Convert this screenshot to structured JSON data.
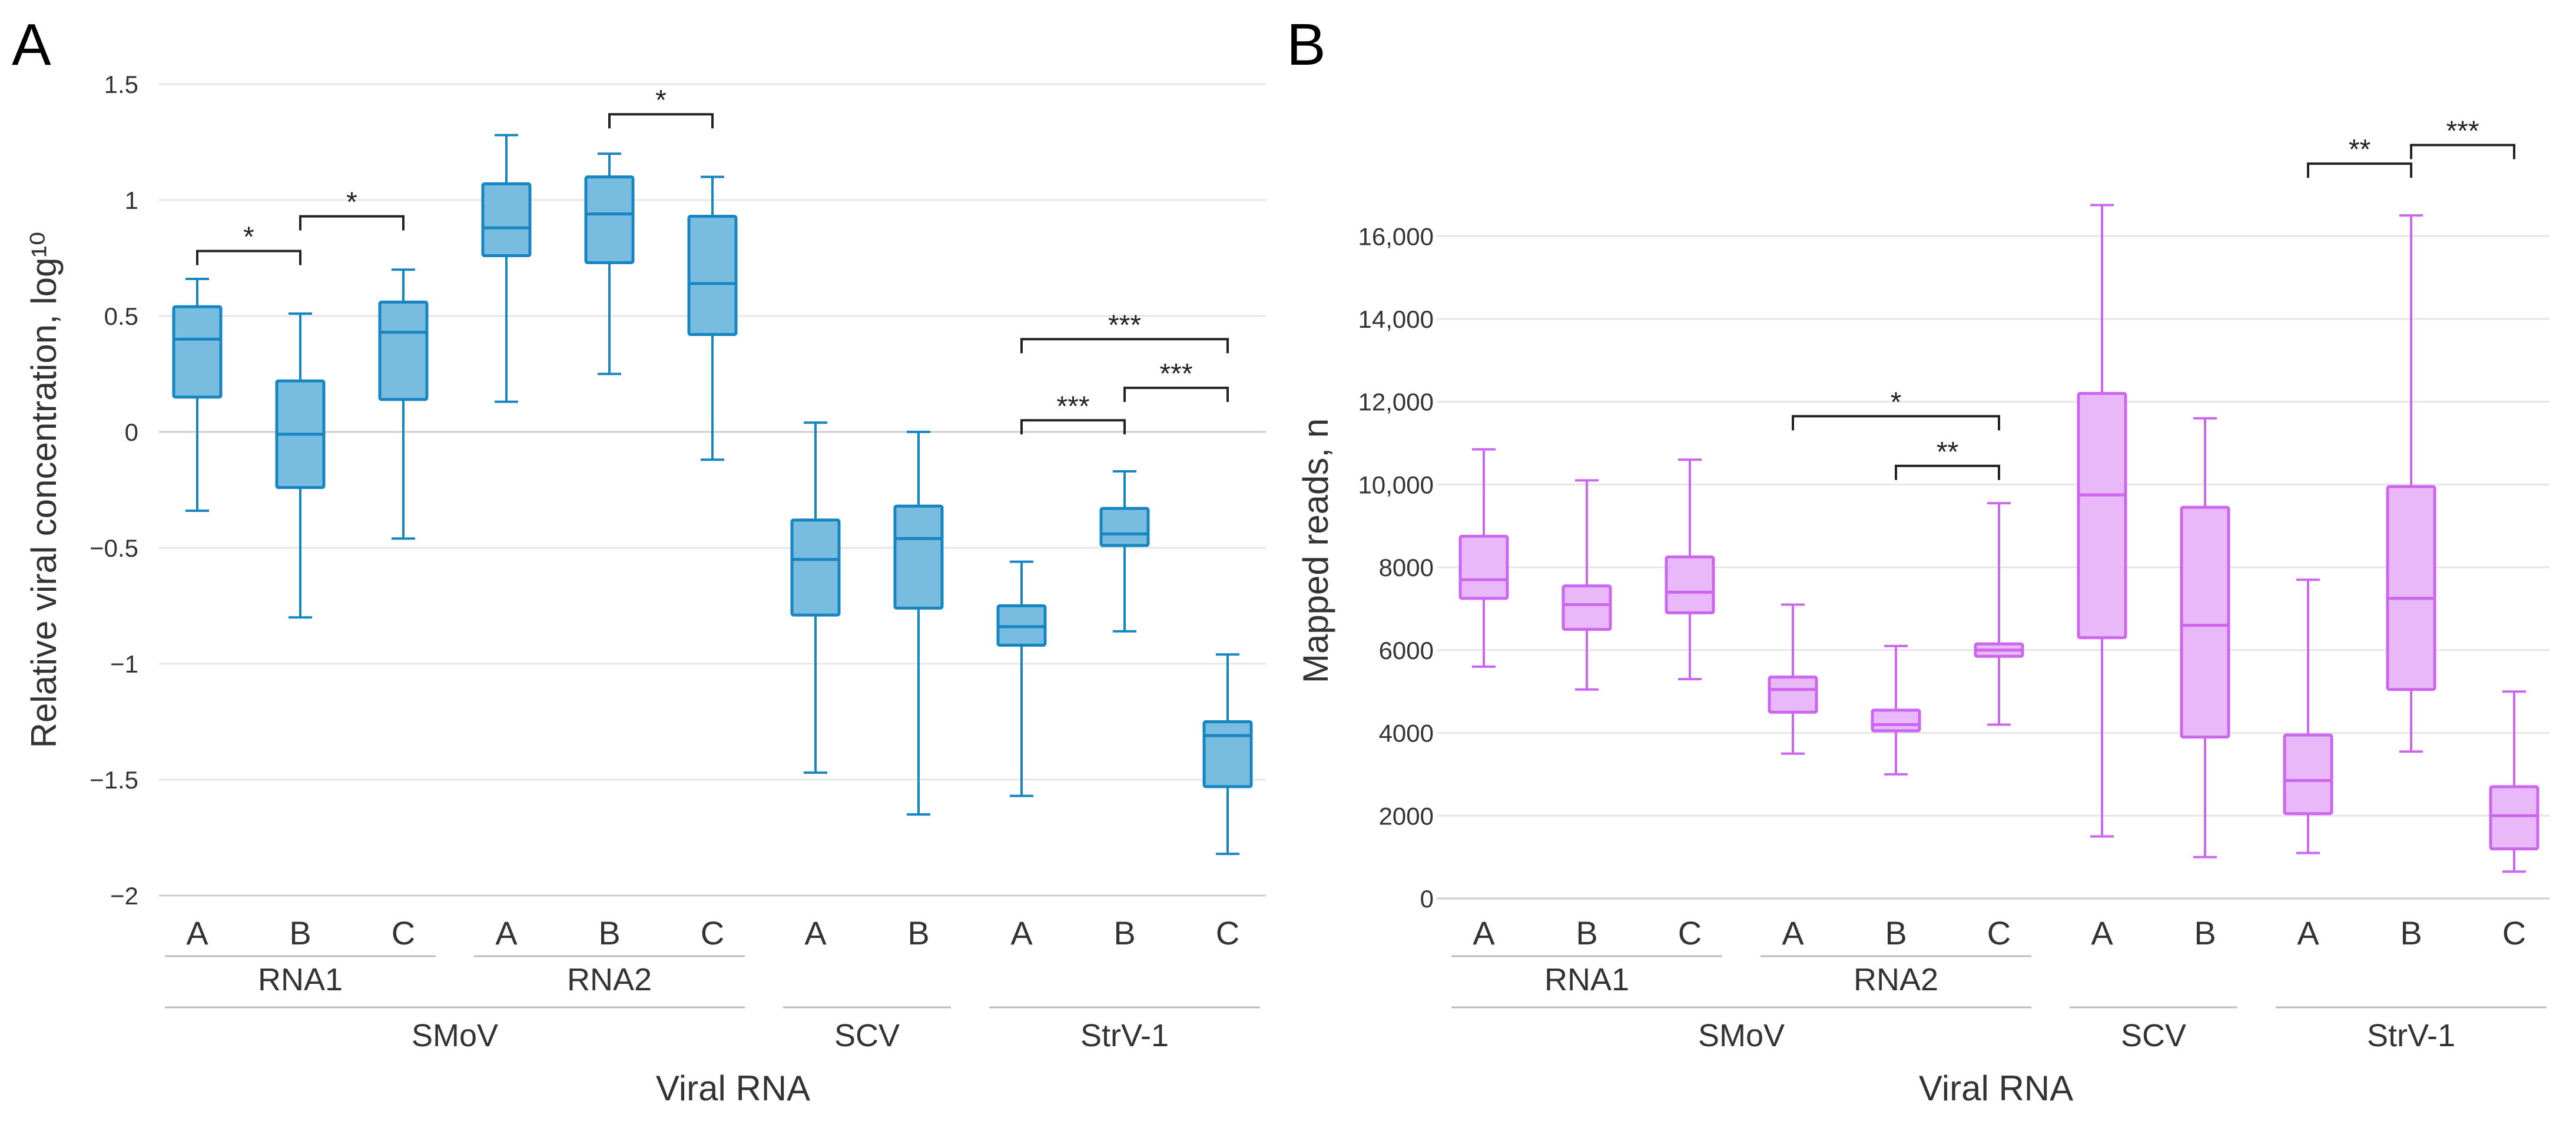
{
  "panels": [
    {
      "letter": "A",
      "ylabel": "Relative viral concentration, log¹⁰",
      "xlabel": "Viral RNA",
      "ylim": [
        -2,
        1.5
      ],
      "yticks": [
        {
          "value": 1.5,
          "label": "1.5"
        },
        {
          "value": 1,
          "label": "1"
        },
        {
          "value": 0.5,
          "label": "0.5"
        },
        {
          "value": 0,
          "label": "0"
        },
        {
          "value": -0.5,
          "label": "−0.5"
        },
        {
          "value": -1,
          "label": "−1"
        },
        {
          "value": -1.5,
          "label": "−1.5"
        },
        {
          "value": -2,
          "label": "−2"
        }
      ],
      "color": "#1785c2",
      "fill": "#78bde0",
      "zero_line": true,
      "groups_level1": [
        {
          "label": "RNA1",
          "from": 0,
          "to": 2
        },
        {
          "label": "RNA2",
          "from": 3,
          "to": 5
        }
      ],
      "groups_level2": [
        {
          "label": "SMoV",
          "from": 0,
          "to": 5
        },
        {
          "label": "SCV",
          "from": 6,
          "to": 7
        },
        {
          "label": "StrV-1",
          "from": 8,
          "to": 10
        }
      ],
      "boxes": [
        {
          "label": "A",
          "min": -0.34,
          "q1": 0.15,
          "median": 0.4,
          "q3": 0.54,
          "max": 0.66
        },
        {
          "label": "B",
          "min": -0.8,
          "q1": -0.24,
          "median": -0.01,
          "q3": 0.22,
          "max": 0.51
        },
        {
          "label": "C",
          "min": -0.46,
          "q1": 0.14,
          "median": 0.43,
          "q3": 0.56,
          "max": 0.7
        },
        {
          "label": "A",
          "min": 0.13,
          "q1": 0.76,
          "median": 0.88,
          "q3": 1.07,
          "max": 1.28
        },
        {
          "label": "B",
          "min": 0.25,
          "q1": 0.73,
          "median": 0.94,
          "q3": 1.1,
          "max": 1.2
        },
        {
          "label": "C",
          "min": -0.12,
          "q1": 0.42,
          "median": 0.64,
          "q3": 0.93,
          "max": 1.1
        },
        {
          "label": "A",
          "min": -1.47,
          "q1": -0.79,
          "median": -0.55,
          "q3": -0.38,
          "max": 0.04
        },
        {
          "label": "B",
          "min": -1.65,
          "q1": -0.76,
          "median": -0.46,
          "q3": -0.32,
          "max": 0.0
        },
        {
          "label": "A",
          "min": -1.57,
          "q1": -0.92,
          "median": -0.84,
          "q3": -0.75,
          "max": -0.56
        },
        {
          "label": "B",
          "min": -0.86,
          "q1": -0.49,
          "median": -0.44,
          "q3": -0.33,
          "max": -0.17
        },
        {
          "label": "C",
          "min": -1.82,
          "q1": -1.53,
          "median": -1.31,
          "q3": -1.25,
          "max": -0.96
        }
      ],
      "significance": [
        {
          "from": 0,
          "to": 1,
          "y": 0.78,
          "label": "*"
        },
        {
          "from": 1,
          "to": 2,
          "y": 0.93,
          "label": "*"
        },
        {
          "from": 4,
          "to": 5,
          "y": 1.37,
          "label": "*"
        },
        {
          "from": 8,
          "to": 10,
          "y": 0.4,
          "label": "***"
        },
        {
          "from": 9,
          "to": 10,
          "y": 0.19,
          "label": "***"
        },
        {
          "from": 8,
          "to": 9,
          "y": 0.05,
          "label": "***"
        }
      ]
    },
    {
      "letter": "B",
      "ylabel": "Mapped reads, n",
      "xlabel": "Viral RNA",
      "ylim": [
        0,
        16800
      ],
      "yticks": [
        {
          "value": 0,
          "label": "0"
        },
        {
          "value": 2000,
          "label": "2000"
        },
        {
          "value": 4000,
          "label": "4000"
        },
        {
          "value": 6000,
          "label": "6000"
        },
        {
          "value": 8000,
          "label": "8000"
        },
        {
          "value": 10000,
          "label": "10,000"
        },
        {
          "value": 12000,
          "label": "12,000"
        },
        {
          "value": 14000,
          "label": "14,000"
        },
        {
          "value": 16000,
          "label": "16,000"
        }
      ],
      "color": "#cc66ee",
      "fill": "#e8b8f8",
      "zero_line": false,
      "groups_level1": [
        {
          "label": "RNA1",
          "from": 0,
          "to": 2
        },
        {
          "label": "RNA2",
          "from": 3,
          "to": 5
        }
      ],
      "groups_level2": [
        {
          "label": "SMoV",
          "from": 0,
          "to": 5
        },
        {
          "label": "SCV",
          "from": 6,
          "to": 7
        },
        {
          "label": "StrV-1",
          "from": 8,
          "to": 10
        }
      ],
      "boxes": [
        {
          "label": "A",
          "min": 5600,
          "q1": 7250,
          "median": 7700,
          "q3": 8750,
          "max": 10850
        },
        {
          "label": "B",
          "min": 5050,
          "q1": 6500,
          "median": 7100,
          "q3": 7550,
          "max": 10100
        },
        {
          "label": "C",
          "min": 5300,
          "q1": 6900,
          "median": 7400,
          "q3": 8250,
          "max": 10600
        },
        {
          "label": "A",
          "min": 3500,
          "q1": 4500,
          "median": 5050,
          "q3": 5350,
          "max": 7100
        },
        {
          "label": "B",
          "min": 3000,
          "q1": 4050,
          "median": 4200,
          "q3": 4550,
          "max": 6100
        },
        {
          "label": "C",
          "min": 4200,
          "q1": 5850,
          "median": 6000,
          "q3": 6150,
          "max": 9550
        },
        {
          "label": "A",
          "min": 1500,
          "q1": 6300,
          "median": 9750,
          "q3": 12200,
          "max": 16750
        },
        {
          "label": "B",
          "min": 1000,
          "q1": 3900,
          "median": 6600,
          "q3": 9450,
          "max": 11600
        },
        {
          "label": "A",
          "min": 1100,
          "q1": 2050,
          "median": 2850,
          "q3": 3950,
          "max": 7700
        },
        {
          "label": "B",
          "min": 3550,
          "q1": 5050,
          "median": 7250,
          "q3": 9950,
          "max": 16500
        },
        {
          "label": "C",
          "min": 650,
          "q1": 1200,
          "median": 2000,
          "q3": 2700,
          "max": 5000
        }
      ],
      "significance": [
        {
          "from": 3,
          "to": 5,
          "y": 11650,
          "label": "*"
        },
        {
          "from": 4,
          "to": 5,
          "y": 10450,
          "label": "**"
        },
        {
          "from": 8,
          "to": 9,
          "y": 17750,
          "label": "**"
        },
        {
          "from": 9,
          "to": 10,
          "y": 18200,
          "label": "***"
        }
      ]
    }
  ]
}
